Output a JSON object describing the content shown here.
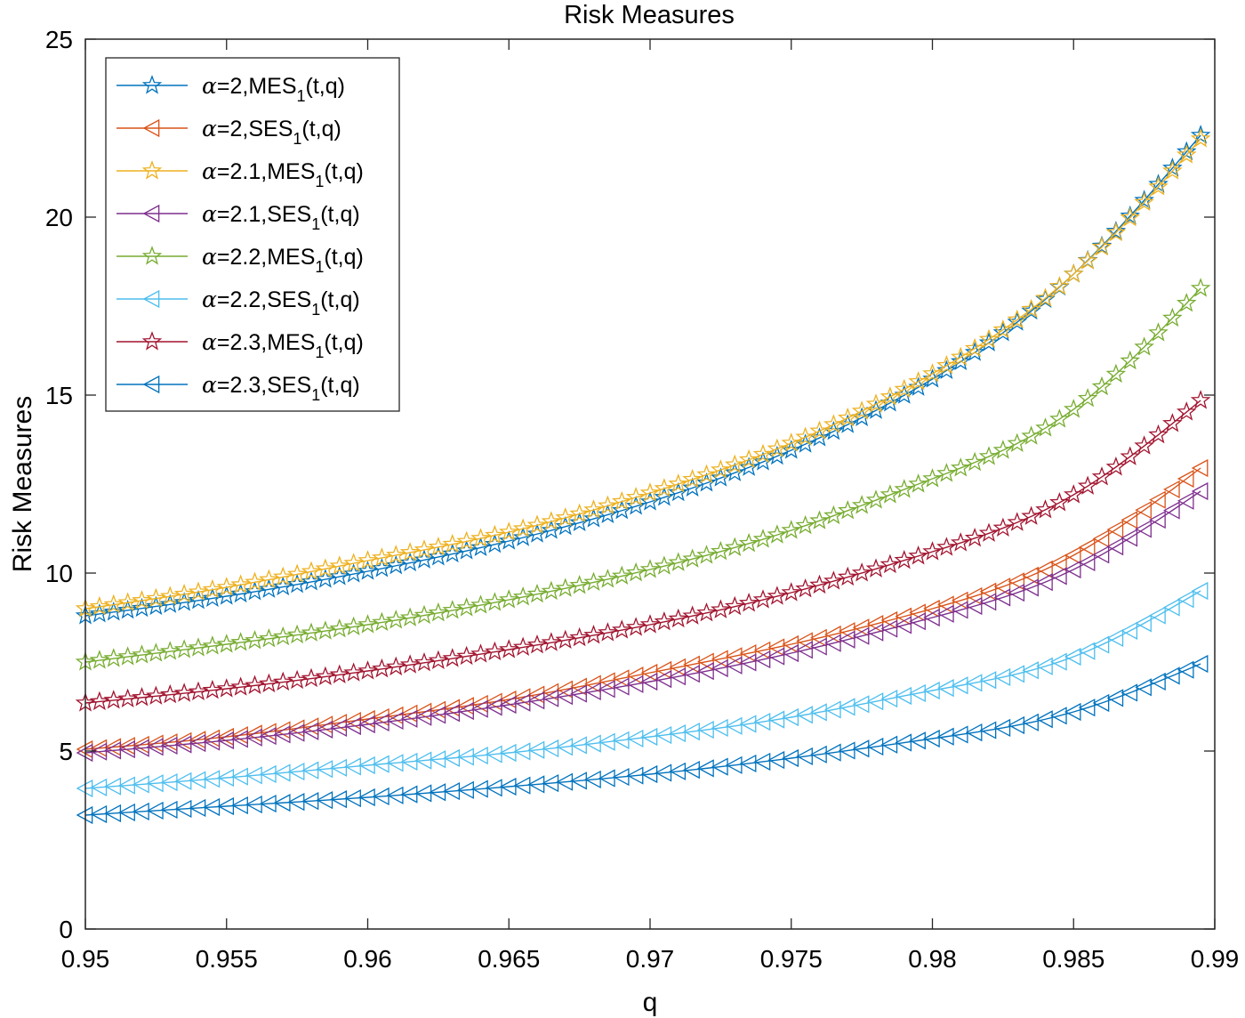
{
  "chart_data": {
    "type": "line",
    "title": "Risk Measures",
    "xlabel": "q",
    "ylabel": "Risk Measures",
    "xlim": [
      0.95,
      0.99
    ],
    "ylim": [
      0,
      25
    ],
    "xticks": [
      0.95,
      0.955,
      0.96,
      0.965,
      0.97,
      0.975,
      0.98,
      0.985,
      0.99
    ],
    "xtick_labels": [
      "0.95",
      "0.955",
      "0.96",
      "0.965",
      "0.97",
      "0.975",
      "0.98",
      "0.985",
      "0.99"
    ],
    "yticks": [
      0,
      5,
      10,
      15,
      20,
      25
    ],
    "ytick_labels": [
      "0",
      "5",
      "10",
      "15",
      "20",
      "25"
    ],
    "grid": false,
    "legend_position": "top-left",
    "x_start": 0.95,
    "x_end": 0.9895,
    "num_points": 80,
    "series": [
      {
        "name": "α=2,MES1(t,q)",
        "legend": {
          "symbol": "α",
          "prefix": "=2,MES",
          "sub": "1",
          "suffix": "(t,q)"
        },
        "color": "#0072BD",
        "marker": "star",
        "knots_x": [
          0.95,
          0.955,
          0.96,
          0.965,
          0.97,
          0.975,
          0.98,
          0.985,
          0.9895
        ],
        "knots_y": [
          8.8,
          9.35,
          10.05,
          10.9,
          12.0,
          13.45,
          15.45,
          18.4,
          22.3
        ]
      },
      {
        "name": "α=2,SES1(t,q)",
        "legend": {
          "symbol": "α",
          "prefix": "=2,SES",
          "sub": "1",
          "suffix": "(t,q)"
        },
        "color": "#D95319",
        "marker": "triangle-left",
        "knots_x": [
          0.95,
          0.955,
          0.96,
          0.965,
          0.97,
          0.975,
          0.98,
          0.985,
          0.9895
        ],
        "knots_y": [
          5.05,
          5.4,
          5.9,
          6.45,
          7.2,
          8.0,
          9.0,
          10.5,
          12.95
        ]
      },
      {
        "name": "α=2.1,MES1(t,q)",
        "legend": {
          "symbol": "α",
          "prefix": "=2.1,MES",
          "sub": "1",
          "suffix": "(t,q)"
        },
        "color": "#EDB120",
        "marker": "star",
        "knots_x": [
          0.95,
          0.955,
          0.96,
          0.965,
          0.97,
          0.975,
          0.98,
          0.985,
          0.9895
        ],
        "knots_y": [
          9.0,
          9.6,
          10.35,
          11.15,
          12.25,
          13.65,
          15.6,
          18.4,
          22.2
        ]
      },
      {
        "name": "α=2.1,SES1(t,q)",
        "legend": {
          "symbol": "α",
          "prefix": "=2.1,SES",
          "sub": "1",
          "suffix": "(t,q)"
        },
        "color": "#7E2F8E",
        "marker": "triangle-left",
        "knots_x": [
          0.95,
          0.955,
          0.96,
          0.965,
          0.97,
          0.975,
          0.98,
          0.985,
          0.9895
        ],
        "knots_y": [
          4.95,
          5.3,
          5.75,
          6.3,
          6.95,
          7.75,
          8.75,
          10.1,
          12.3
        ]
      },
      {
        "name": "α=2.2,MES1(t,q)",
        "legend": {
          "symbol": "α",
          "prefix": "=2.2,MES",
          "sub": "1",
          "suffix": "(t,q)"
        },
        "color": "#77AC30",
        "marker": "star",
        "knots_x": [
          0.95,
          0.955,
          0.96,
          0.965,
          0.97,
          0.975,
          0.98,
          0.985,
          0.9895
        ],
        "knots_y": [
          7.5,
          8.0,
          8.55,
          9.25,
          10.1,
          11.2,
          12.65,
          14.6,
          18.0
        ]
      },
      {
        "name": "α=2.2,SES1(t,q)",
        "legend": {
          "symbol": "α",
          "prefix": "=2.2,SES",
          "sub": "1",
          "suffix": "(t,q)"
        },
        "color": "#4DBEEE",
        "marker": "triangle-left",
        "knots_x": [
          0.95,
          0.955,
          0.96,
          0.965,
          0.97,
          0.975,
          0.98,
          0.985,
          0.9895
        ],
        "knots_y": [
          3.95,
          4.25,
          4.6,
          4.95,
          5.4,
          5.95,
          6.7,
          7.65,
          9.5
        ]
      },
      {
        "name": "α=2.3,MES1(t,q)",
        "legend": {
          "symbol": "α",
          "prefix": "=2.3,MES",
          "sub": "1",
          "suffix": "(t,q)"
        },
        "color": "#A2142F",
        "marker": "star",
        "knots_x": [
          0.95,
          0.955,
          0.96,
          0.965,
          0.97,
          0.975,
          0.98,
          0.985,
          0.9895
        ],
        "knots_y": [
          6.35,
          6.75,
          7.25,
          7.85,
          8.55,
          9.45,
          10.6,
          12.2,
          14.85
        ]
      },
      {
        "name": "α=2.3,SES1(t,q)",
        "legend": {
          "symbol": "α",
          "prefix": "=2.3,SES",
          "sub": "1",
          "suffix": "(t,q)"
        },
        "color": "#0072BD",
        "marker": "triangle-left",
        "knots_x": [
          0.95,
          0.955,
          0.96,
          0.965,
          0.97,
          0.975,
          0.98,
          0.985,
          0.9895
        ],
        "knots_y": [
          3.2,
          3.45,
          3.7,
          4.0,
          4.35,
          4.8,
          5.35,
          6.1,
          7.45
        ]
      }
    ]
  }
}
